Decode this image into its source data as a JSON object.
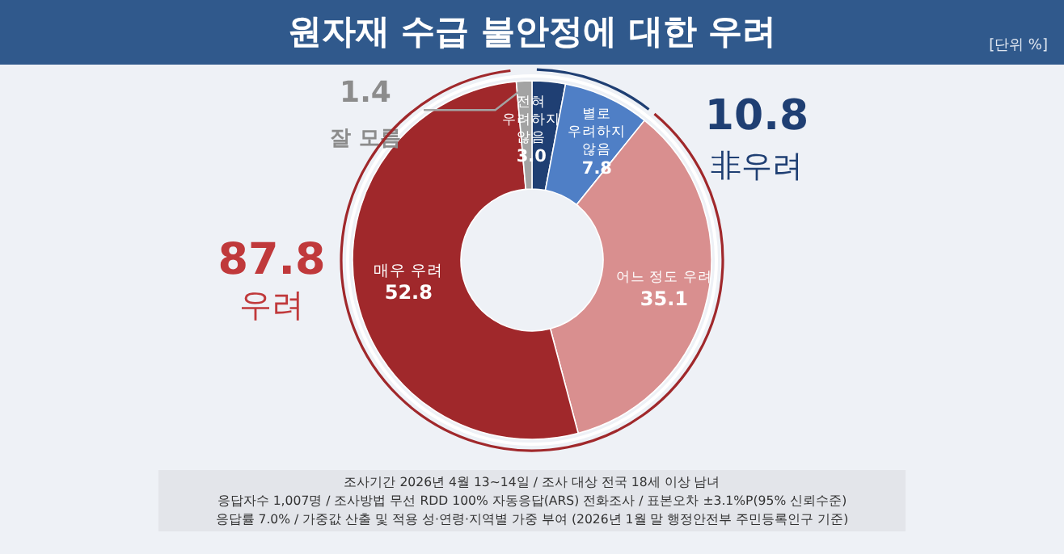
{
  "chart_data": {
    "type": "donut",
    "title": "원자재 수급 불안정에 대한 우려",
    "categories": [
      "전혀 우려하지 않음",
      "별로 우려하지 않음",
      "어느 정도 우려",
      "매우 우려",
      "잘 모름"
    ],
    "values": [
      3.0,
      7.8,
      35.1,
      52.8,
      1.4
    ],
    "colors": [
      "#1f3f73",
      "#4f7fc6",
      "#d98f8f",
      "#a0282b",
      "#a3a3a3"
    ],
    "data_labels": true,
    "value_labels": [
      "3.0",
      "7.8",
      "35.1",
      "52.8",
      "1.4"
    ],
    "annotations": [
      "[단위 %]",
      "87.8",
      "우려",
      "10.8",
      "非우려",
      "조사기간 2026년 4월 13~14일 / 조사 대상 전국 18세 이상 남녀",
      "응답자수 1,007명 / 조사방법 무선 RDD 100% 자동응답(ARS) 전화조사 / 표본오차 ±3.1%P(95% 신뢰수준)",
      "응답률 7.0% / 가중값 산출 및 적용 성·연령·지역별 가중 부여 (2026년 1월 말 행정안전부 주민등록인구 기준)"
    ]
  }
}
